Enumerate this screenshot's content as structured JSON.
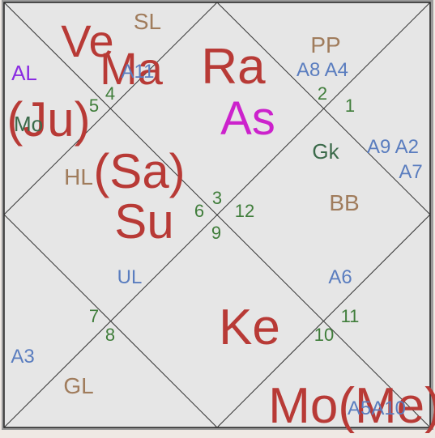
{
  "chart_labels": [
    "SL",
    "Ve",
    "Ma",
    "A11",
    "AL",
    "5",
    "4",
    "(Ju)",
    "Mo",
    "Ra",
    "As",
    "PP",
    "A8 A4",
    "2",
    "1",
    "Gk",
    "A9 A2",
    "A7",
    "HL",
    "(Sa)",
    "Su",
    "3",
    "6",
    "12",
    "9",
    "BB",
    "UL",
    "A6",
    "7",
    "8",
    "Ke",
    "11",
    "10",
    "A3",
    "GL",
    "Mo(Me)",
    "A5A10"
  ]
}
